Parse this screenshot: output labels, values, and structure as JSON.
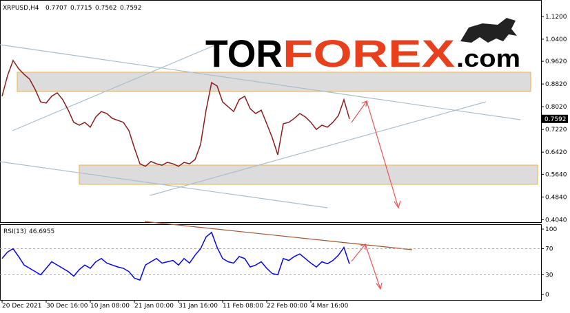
{
  "chart_data": [
    {
      "type": "line",
      "title": "XRPUSD,H4",
      "ohlc": [
        0.7707,
        0.7715,
        0.7562,
        0.7592
      ],
      "logo": {
        "tor": "TOR",
        "forex": "FOREX",
        "com": ".com"
      },
      "categories": [
        "20 Dec 2021",
        null,
        null,
        null,
        null,
        null,
        null,
        null,
        "30 Dec 16:00",
        null,
        null,
        null,
        null,
        null,
        null,
        null,
        "10 Jan 08:00",
        null,
        null,
        null,
        null,
        null,
        null,
        null,
        "21 Jan 00:00",
        null,
        null,
        null,
        null,
        null,
        null,
        null,
        "31 Jan 16:00",
        null,
        null,
        null,
        null,
        null,
        null,
        null,
        "11 Feb 08:00",
        null,
        null,
        null,
        null,
        null,
        null,
        null,
        "22 Feb 00:00",
        null,
        null,
        null,
        null,
        null,
        null,
        null,
        "4 Mar 16:00",
        null,
        null,
        null,
        null,
        null,
        null,
        null
      ],
      "values": [
        0.839,
        0.912,
        0.965,
        0.936,
        0.916,
        0.899,
        0.863,
        0.819,
        0.815,
        0.839,
        0.851,
        0.827,
        0.79,
        0.747,
        0.737,
        0.747,
        0.73,
        0.766,
        0.785,
        0.778,
        0.761,
        0.754,
        0.747,
        0.718,
        0.657,
        0.601,
        0.592,
        0.609,
        0.601,
        0.596,
        0.606,
        0.601,
        0.592,
        0.606,
        0.601,
        0.616,
        0.669,
        0.79,
        0.887,
        0.875,
        0.819,
        0.802,
        0.785,
        0.827,
        0.839,
        0.795,
        0.778,
        0.79,
        0.742,
        0.693,
        0.633,
        0.742,
        0.747,
        0.761,
        0.778,
        0.766,
        0.747,
        0.722,
        0.737,
        0.73,
        0.747,
        0.771,
        0.827,
        0.7592
      ],
      "color": "#8b1a1a",
      "ylim": [
        0.3952,
        1.178
      ],
      "yticks": [
        {
          "value": 1.12,
          "label": "1.1200"
        },
        {
          "value": 1.04,
          "label": "1.0400"
        },
        {
          "value": 0.962,
          "label": "0.9620"
        },
        {
          "value": 0.882,
          "label": "0.8820"
        },
        {
          "value": 0.802,
          "label": "0.8020"
        },
        {
          "value": 0.722,
          "label": "0.7220"
        },
        {
          "value": 0.642,
          "label": "0.6420"
        },
        {
          "value": 0.564,
          "label": "0.5640"
        },
        {
          "value": 0.484,
          "label": "0.4840"
        },
        {
          "value": 0.404,
          "label": "0.4040"
        }
      ]
    },
    {
      "type": "line",
      "title": "RSI(13)",
      "values": [
        55,
        65,
        70,
        58,
        45,
        40,
        35,
        30,
        40,
        50,
        45,
        40,
        35,
        28,
        38,
        45,
        40,
        50,
        55,
        48,
        45,
        42,
        40,
        35,
        25,
        22,
        45,
        50,
        55,
        48,
        50,
        52,
        45,
        55,
        48,
        60,
        70,
        88,
        95,
        72,
        55,
        50,
        48,
        58,
        55,
        42,
        45,
        50,
        40,
        32,
        30,
        55,
        52,
        58,
        62,
        55,
        48,
        42,
        50,
        47,
        52,
        60,
        72,
        46.6955
      ],
      "color": "#0000ff",
      "ylim": [
        -8.4,
        107.4
      ],
      "yticks": [
        100,
        70,
        30,
        0
      ],
      "levels": [
        70,
        30
      ]
    }
  ]
}
